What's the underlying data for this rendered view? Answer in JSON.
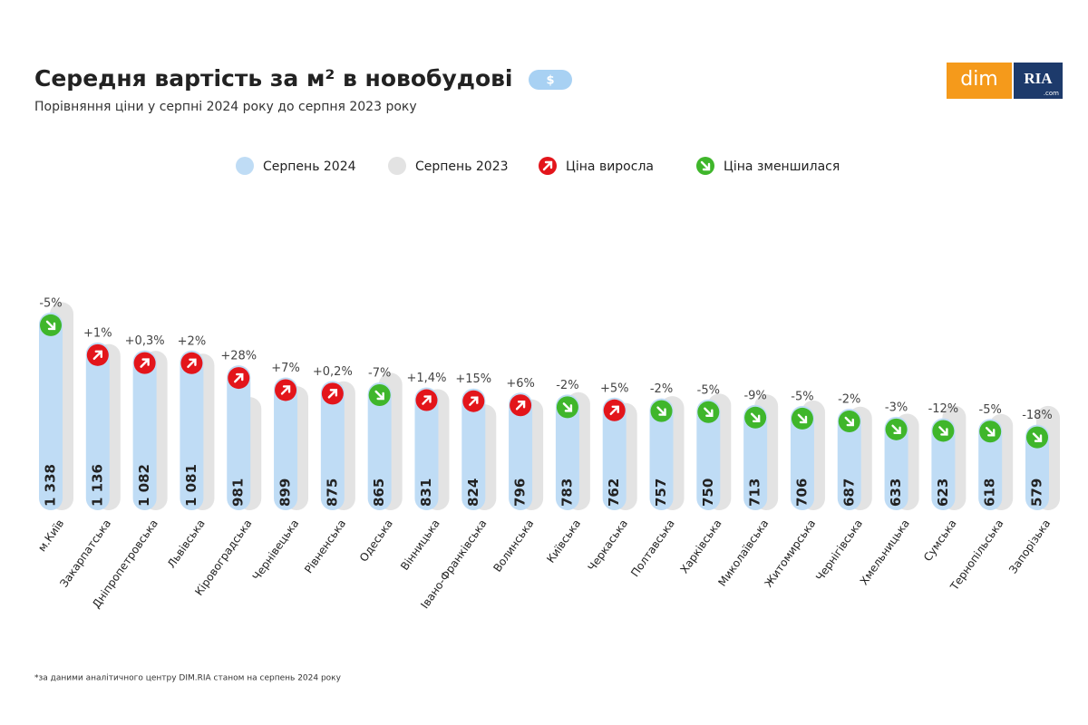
{
  "chart_data": {
    "type": "bar",
    "title": "Середня вартість за м² в новобудові",
    "badge": "$",
    "subtitle": "Порівняння ціни у серпні 2024 року до серпня 2023 року",
    "logo": {
      "left": "dim",
      "right": "RIA",
      "suffix": ".com"
    },
    "footnote": "*за даними аналітичного центру DIM.RIA станом на серпень 2024 року",
    "categories": [
      "м.Київ",
      "Закарпатська",
      "Дніпропетровська",
      "Львівська",
      "Кіровоградська",
      "Чернівецька",
      "Рівненська",
      "Одеська",
      "Вінницька",
      "Івано-Франківська",
      "Волинська",
      "Київська",
      "Черкаська",
      "Полтавська",
      "Харківська",
      "Миколаївська",
      "Житомирська",
      "Чернігівська",
      "Хмельницька",
      "Сумська",
      "Тернопільська",
      "Запорізька"
    ],
    "series": [
      {
        "name": "Серпень 2024",
        "color": "#bfdcf5",
        "values": [
          1338,
          1136,
          1082,
          1081,
          981,
          899,
          875,
          865,
          831,
          824,
          796,
          783,
          762,
          757,
          750,
          713,
          706,
          687,
          633,
          623,
          618,
          579
        ],
        "value_labels": [
          "1 338",
          "1 136",
          "1 082",
          "1 081",
          "981",
          "899",
          "875",
          "865",
          "831",
          "824",
          "796",
          "783",
          "762",
          "757",
          "750",
          "713",
          "706",
          "687",
          "633",
          "623",
          "618",
          "579"
        ]
      },
      {
        "name": "Серпень 2023",
        "color": "#e3e3e3",
        "values": [
          1408,
          1125,
          1079,
          1060,
          766,
          840,
          873,
          930,
          820,
          717,
          751,
          799,
          726,
          772,
          789,
          784,
          743,
          701,
          653,
          708,
          651,
          706
        ]
      }
    ],
    "changes": {
      "values": [
        -5,
        1,
        0.3,
        2,
        28,
        7,
        0.2,
        -7,
        1.4,
        15,
        6,
        -2,
        5,
        -2,
        -5,
        -9,
        -5,
        -2,
        -3,
        -12,
        -5,
        -18
      ],
      "value_labels": [
        "-5%",
        "+1%",
        "+0,3%",
        "+2%",
        "+28%",
        "+7%",
        "+0,2%",
        "-7%",
        "+1,4%",
        "+15%",
        "+6%",
        "-2%",
        "+5%",
        "-2%",
        "-5%",
        "-9%",
        "-5%",
        "-2%",
        "-3%",
        "-12%",
        "-5%",
        "-18%"
      ]
    },
    "markers": [
      {
        "name": "Ціна виросла",
        "color": "#e3151b"
      },
      {
        "name": "Ціна зменшилася",
        "color": "#3fb62b"
      }
    ]
  }
}
